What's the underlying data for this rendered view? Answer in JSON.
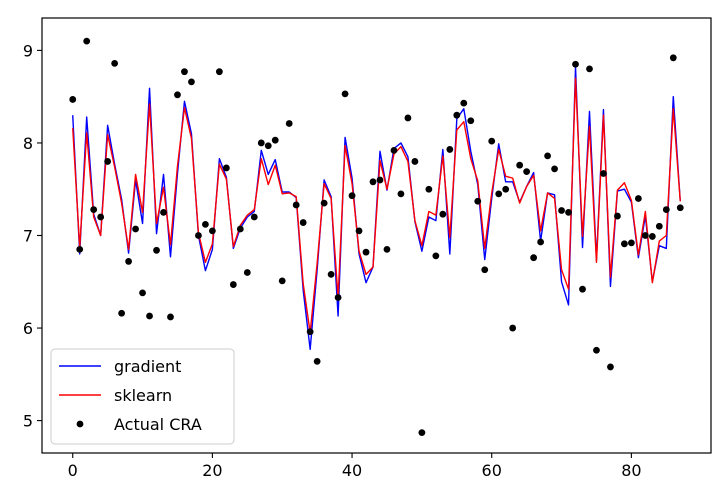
{
  "chart_data": {
    "type": "line",
    "title": "",
    "xlabel": "",
    "ylabel": "",
    "xlim": [
      -4.4,
      91.4
    ],
    "ylim": [
      4.65,
      9.35
    ],
    "xticks": [
      0,
      20,
      40,
      60,
      80
    ],
    "yticks": [
      5,
      6,
      7,
      8,
      9
    ],
    "grid": false,
    "legend_position": "lower-left",
    "series": [
      {
        "name": "gradient",
        "kind": "line",
        "color": "#0000ff",
        "x": [
          0,
          1,
          2,
          3,
          4,
          5,
          6,
          7,
          8,
          9,
          10,
          11,
          12,
          13,
          14,
          15,
          16,
          17,
          18,
          19,
          20,
          21,
          22,
          23,
          24,
          25,
          26,
          27,
          28,
          29,
          30,
          31,
          32,
          33,
          34,
          35,
          36,
          37,
          38,
          39,
          40,
          41,
          42,
          43,
          44,
          45,
          46,
          47,
          48,
          49,
          50,
          51,
          52,
          53,
          54,
          55,
          56,
          57,
          58,
          59,
          60,
          61,
          62,
          63,
          64,
          65,
          66,
          67,
          68,
          69,
          70,
          71,
          72,
          73,
          74,
          75,
          76,
          77,
          78,
          79,
          80,
          81,
          82,
          83,
          84,
          85,
          86,
          87
        ],
        "y": [
          8.3,
          6.8,
          8.28,
          7.23,
          7.0,
          8.19,
          7.77,
          7.39,
          6.81,
          7.6,
          7.13,
          8.59,
          7.02,
          7.66,
          6.77,
          7.67,
          8.45,
          8.1,
          7.0,
          6.62,
          6.85,
          7.83,
          7.63,
          6.86,
          7.08,
          7.2,
          7.26,
          7.92,
          7.66,
          7.82,
          7.47,
          7.47,
          7.41,
          6.41,
          5.77,
          6.63,
          7.6,
          7.42,
          6.13,
          8.06,
          7.62,
          6.8,
          6.49,
          6.66,
          7.91,
          7.49,
          7.94,
          8.0,
          7.85,
          7.15,
          6.83,
          7.2,
          7.16,
          7.93,
          6.8,
          8.26,
          8.37,
          7.91,
          7.55,
          6.74,
          7.4,
          7.99,
          7.58,
          7.58,
          7.36,
          7.53,
          7.68,
          6.94,
          7.46,
          7.44,
          6.5,
          6.25,
          8.82,
          6.87,
          8.34,
          6.74,
          8.36,
          6.45,
          7.48,
          7.5,
          7.36,
          6.76,
          7.21,
          6.5,
          6.89,
          6.86,
          8.5,
          7.37
        ]
      },
      {
        "name": "sklearn",
        "kind": "line",
        "color": "#ff0000",
        "x": [
          0,
          1,
          2,
          3,
          4,
          5,
          6,
          7,
          8,
          9,
          10,
          11,
          12,
          13,
          14,
          15,
          16,
          17,
          18,
          19,
          20,
          21,
          22,
          23,
          24,
          25,
          26,
          27,
          28,
          29,
          30,
          31,
          32,
          33,
          34,
          35,
          36,
          37,
          38,
          39,
          40,
          41,
          42,
          43,
          44,
          45,
          46,
          47,
          48,
          49,
          50,
          51,
          52,
          53,
          54,
          55,
          56,
          57,
          58,
          59,
          60,
          61,
          62,
          63,
          64,
          65,
          66,
          67,
          68,
          69,
          70,
          71,
          72,
          73,
          74,
          75,
          76,
          77,
          78,
          79,
          80,
          81,
          82,
          83,
          84,
          85,
          86,
          87
        ],
        "y": [
          8.16,
          6.87,
          8.11,
          7.2,
          7.0,
          8.09,
          7.74,
          7.35,
          6.85,
          7.66,
          7.25,
          8.42,
          7.13,
          7.52,
          6.9,
          7.75,
          8.38,
          8.05,
          7.03,
          6.71,
          6.91,
          7.77,
          7.61,
          6.88,
          7.11,
          7.22,
          7.28,
          7.83,
          7.55,
          7.76,
          7.45,
          7.46,
          7.42,
          6.48,
          5.95,
          6.7,
          7.56,
          7.4,
          6.33,
          7.97,
          7.56,
          6.83,
          6.58,
          6.66,
          7.81,
          7.5,
          7.88,
          7.96,
          7.8,
          7.16,
          6.89,
          7.26,
          7.22,
          7.86,
          6.98,
          8.14,
          8.23,
          7.83,
          7.59,
          6.86,
          7.46,
          7.93,
          7.64,
          7.62,
          7.35,
          7.53,
          7.65,
          7.05,
          7.46,
          7.4,
          6.63,
          6.42,
          8.7,
          6.99,
          8.18,
          6.71,
          8.3,
          6.55,
          7.49,
          7.57,
          7.38,
          6.79,
          7.26,
          6.49,
          6.94,
          7.0,
          8.37,
          7.37
        ]
      },
      {
        "name": "Actual CRA",
        "kind": "scatter",
        "color": "#000000",
        "x": [
          0,
          1,
          2,
          3,
          4,
          5,
          6,
          7,
          8,
          9,
          10,
          11,
          12,
          13,
          14,
          15,
          16,
          17,
          18,
          19,
          20,
          21,
          22,
          23,
          24,
          25,
          26,
          27,
          28,
          29,
          30,
          31,
          32,
          33,
          34,
          35,
          36,
          37,
          38,
          39,
          40,
          41,
          42,
          43,
          44,
          45,
          46,
          47,
          48,
          49,
          50,
          51,
          52,
          53,
          54,
          55,
          56,
          57,
          58,
          59,
          60,
          61,
          62,
          63,
          64,
          65,
          66,
          67,
          68,
          69,
          70,
          71,
          72,
          73,
          74,
          75,
          76,
          77,
          78,
          79,
          80,
          81,
          82,
          83,
          84,
          85,
          86,
          87
        ],
        "y": [
          8.47,
          6.85,
          9.1,
          7.28,
          7.2,
          7.8,
          8.86,
          6.16,
          6.72,
          7.07,
          6.38,
          6.13,
          6.84,
          7.25,
          6.12,
          8.52,
          8.77,
          8.66,
          7.0,
          7.12,
          7.05,
          8.77,
          7.73,
          6.47,
          7.07,
          6.6,
          7.2,
          8.0,
          7.97,
          8.03,
          6.51,
          8.21,
          7.33,
          7.14,
          5.96,
          5.64,
          7.35,
          6.58,
          6.33,
          8.53,
          7.43,
          7.05,
          6.82,
          7.58,
          7.6,
          6.85,
          7.92,
          7.45,
          8.27,
          7.8,
          4.87,
          7.5,
          6.78,
          7.23,
          7.93,
          8.3,
          8.43,
          8.24,
          7.37,
          6.63,
          8.02,
          7.45,
          7.5,
          6.0,
          7.76,
          7.69,
          6.76,
          6.93,
          7.86,
          7.72,
          7.27,
          7.25,
          8.85,
          6.42,
          8.8,
          5.76,
          7.67,
          5.58,
          7.21,
          6.91,
          6.92,
          7.4,
          7.0,
          6.99,
          7.1,
          7.28,
          8.92,
          7.3
        ]
      }
    ]
  }
}
